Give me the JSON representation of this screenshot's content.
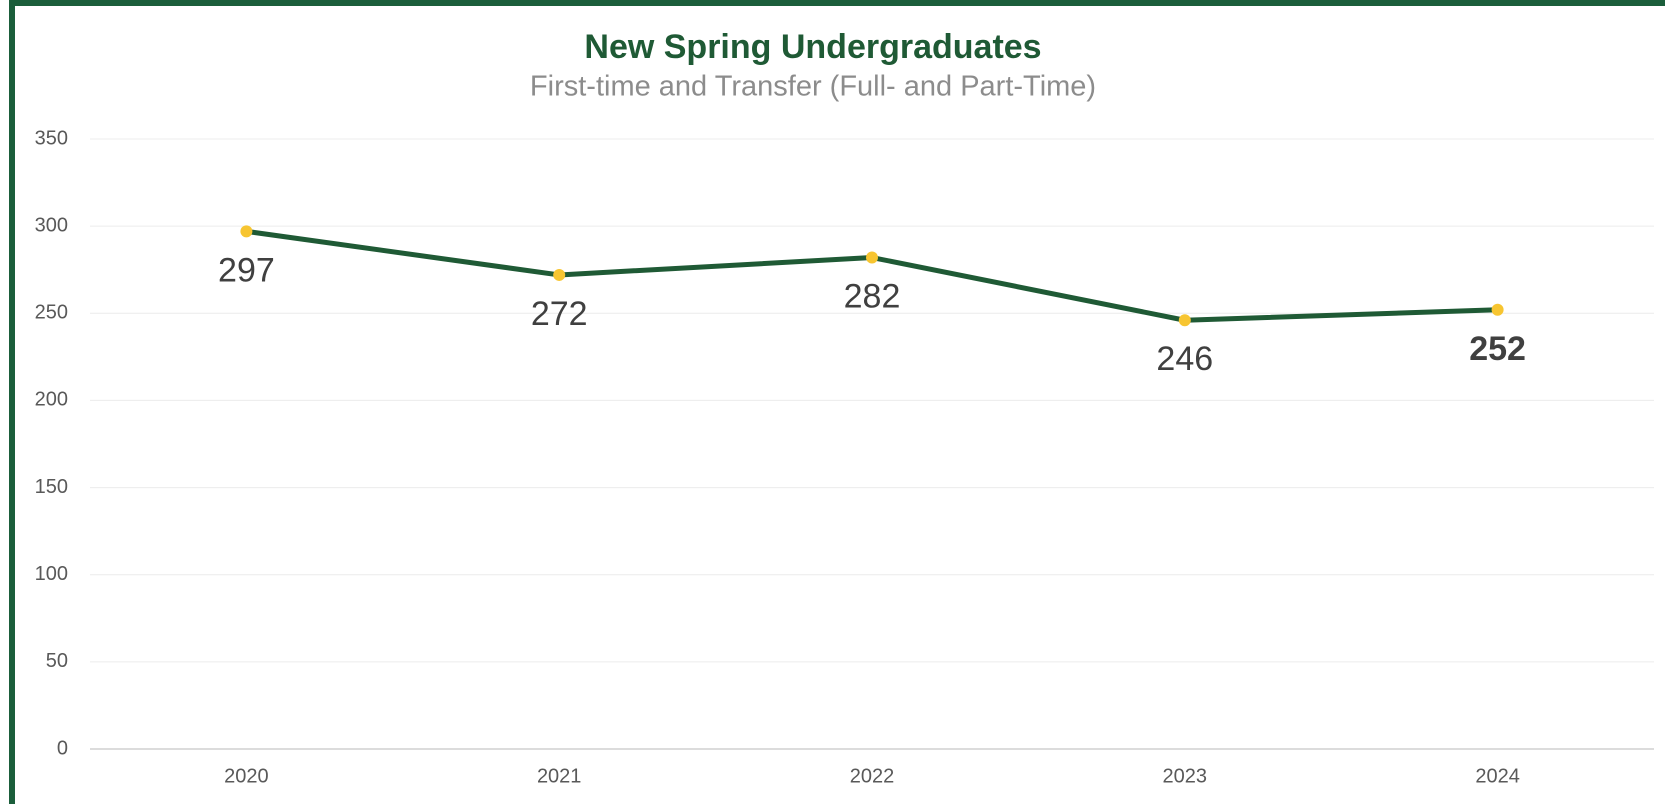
{
  "chart_data": {
    "type": "line",
    "title": "New Spring Undergraduates",
    "subtitle": "First-time and Transfer (Full- and Part-Time)",
    "categories": [
      "2020",
      "2021",
      "2022",
      "2023",
      "2024"
    ],
    "series": [
      {
        "name": "New Spring Undergraduates",
        "color": "#1f5a35",
        "marker_color": "#f7c531",
        "values": [
          297,
          272,
          282,
          246,
          252
        ]
      }
    ],
    "ylim": [
      0,
      350
    ],
    "yticks": [
      0,
      50,
      100,
      150,
      200,
      250,
      300,
      350
    ],
    "grid": true
  }
}
